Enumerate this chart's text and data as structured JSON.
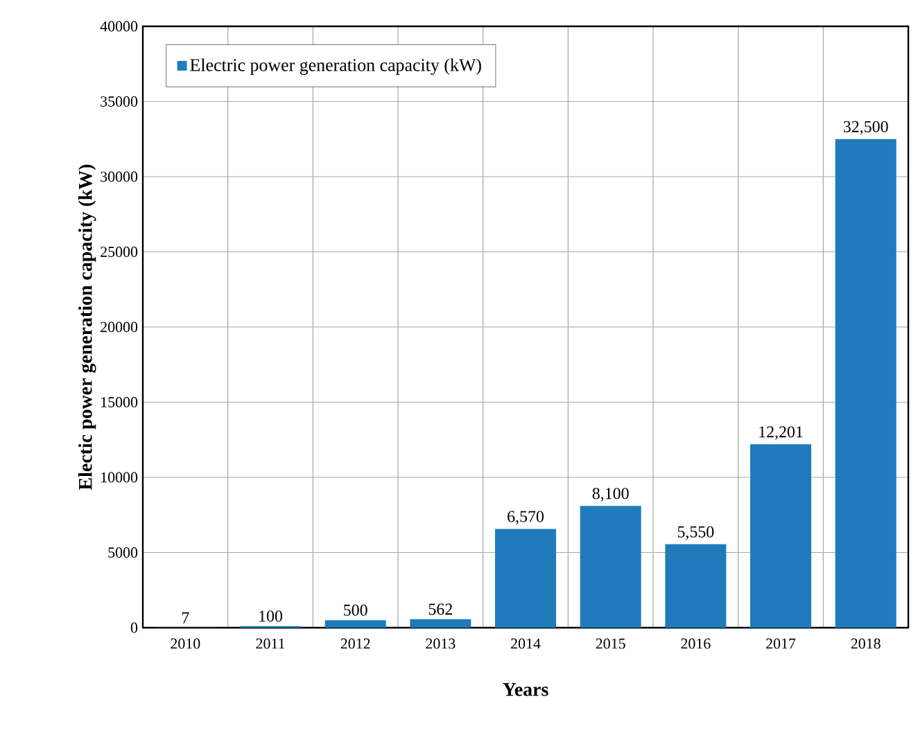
{
  "chart_data": {
    "type": "bar",
    "xlabel": "Years",
    "ylabel": "Electic power generation capacity (kW)",
    "categories": [
      "2010",
      "2011",
      "2012",
      "2013",
      "2014",
      "2015",
      "2016",
      "2017",
      "2018"
    ],
    "series": [
      {
        "name": "Electric power generation capacity (kW)",
        "color": "#1f7bbb",
        "values": [
          7,
          100,
          500,
          562,
          6570,
          8100,
          5550,
          12201,
          32500
        ],
        "value_labels": [
          "7",
          "100",
          "500",
          "562",
          "6,570",
          "8,100",
          "5,550",
          "12,201",
          "32,500"
        ]
      }
    ],
    "ylim": [
      0,
      40000
    ],
    "yticks": [
      0,
      5000,
      10000,
      15000,
      20000,
      25000,
      30000,
      35000,
      40000
    ],
    "grid": true,
    "legend": "top left"
  }
}
